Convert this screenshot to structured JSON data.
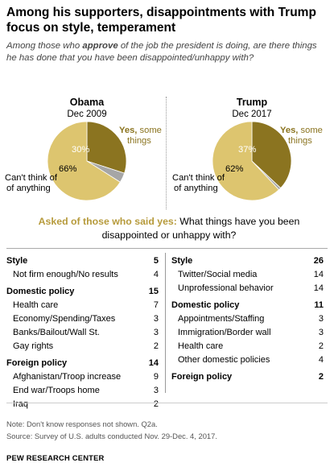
{
  "title_line1": "Among his supporters, disappointments  with Trump",
  "title_line2": "focus on style, temperament",
  "subtitle_pre": "Among those who ",
  "subtitle_bold": "approve",
  "subtitle_post": " of the job the president is doing, are there things he has done that you have been disappointed/unhappy with?",
  "colors": {
    "yes": "#8b7420",
    "cant_think": "#ddc56f",
    "dont_know": "#a6a6a6"
  },
  "chart_data": [
    {
      "type": "pie",
      "name": "Obama",
      "date": "Dec 2009",
      "slices": [
        {
          "label": "Yes, some things",
          "value": 30,
          "display": "30%"
        },
        {
          "label": "Don't know",
          "value": 4,
          "display": ""
        },
        {
          "label": "Can't think of anything",
          "value": 66,
          "display": "66%"
        }
      ]
    },
    {
      "type": "pie",
      "name": "Trump",
      "date": "Dec 2017",
      "slices": [
        {
          "label": "Yes, some things",
          "value": 37,
          "display": "37%"
        },
        {
          "label": "Don't know",
          "value": 1,
          "display": ""
        },
        {
          "label": "Can't think of anything",
          "value": 62,
          "display": "62%"
        }
      ]
    },
    {
      "type": "table",
      "name": "Obama",
      "rows": [
        {
          "label": "Style",
          "value": "5",
          "category": true
        },
        {
          "label": "Not firm enough/No results",
          "value": "4",
          "category": false
        },
        {
          "label": "Domestic policy",
          "value": "15",
          "category": true
        },
        {
          "label": "Health care",
          "value": "7",
          "category": false
        },
        {
          "label": "Economy/Spending/Taxes",
          "value": "3",
          "category": false
        },
        {
          "label": "Banks/Bailout/Wall St.",
          "value": "3",
          "category": false
        },
        {
          "label": "Gay rights",
          "value": "2",
          "category": false
        },
        {
          "label": "Foreign policy",
          "value": "14",
          "category": true
        },
        {
          "label": "Afghanistan/Troop increase",
          "value": "9",
          "category": false
        },
        {
          "label": "End war/Troops home",
          "value": "3",
          "category": false
        },
        {
          "label": "Iraq",
          "value": "2",
          "category": false
        }
      ]
    },
    {
      "type": "table",
      "name": "Trump",
      "rows": [
        {
          "label": "Style",
          "value": "26",
          "category": true
        },
        {
          "label": "Twitter/Social media",
          "value": "14",
          "category": false
        },
        {
          "label": "Unprofessional behavior",
          "value": "14",
          "category": false
        },
        {
          "label": "Domestic policy",
          "value": "11",
          "category": true
        },
        {
          "label": "Appointments/Staffing",
          "value": "3",
          "category": false
        },
        {
          "label": "Immigration/Border wall",
          "value": "3",
          "category": false
        },
        {
          "label": "Health care",
          "value": "2",
          "category": false
        },
        {
          "label": "Other domestic policies",
          "value": "4",
          "category": false
        },
        {
          "label": "Foreign policy",
          "value": "2",
          "category": true
        }
      ]
    }
  ],
  "pie_labels": {
    "yes_label": "Yes,",
    "yes_label_rest": " some",
    "yes_label_line2": "things",
    "cant_line1": "Can't think of",
    "cant_line2": "of anything",
    "cant_line2_right": "of anything"
  },
  "question_bold": "Asked of those who said yes:",
  "question_rest": " What things have you been disappointed or unhappy with?",
  "note_line1": "Note: Don't know responses not shown. Q2a.",
  "note_line2": "Source: Survey of U.S. adults conducted Nov. 29-Dec. 4, 2017.",
  "footer": "PEW RESEARCH CENTER"
}
